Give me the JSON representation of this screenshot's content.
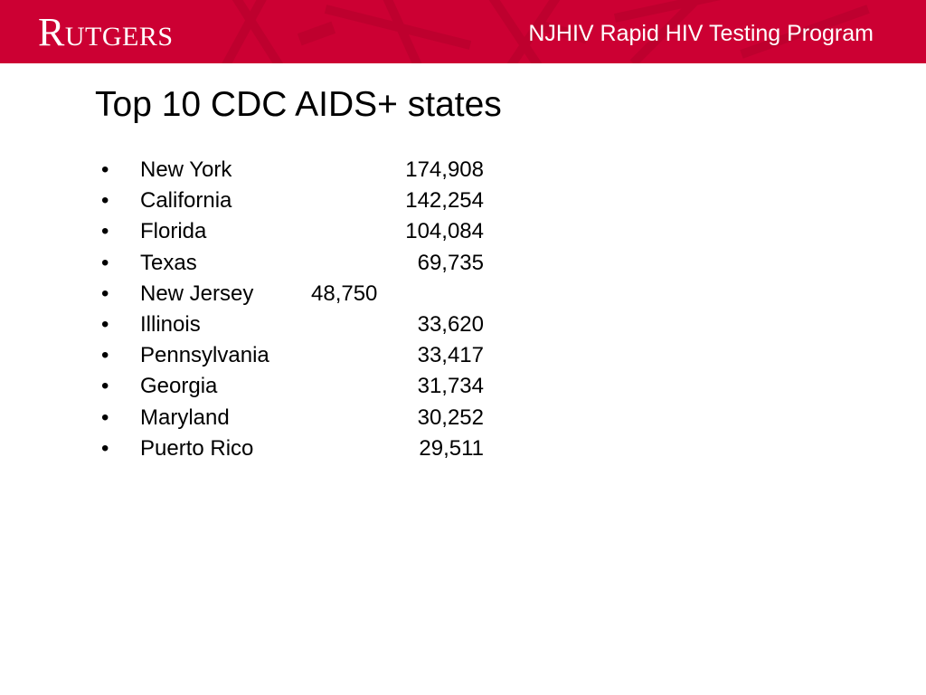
{
  "header": {
    "logo_initial": "R",
    "logo_rest": "UTGERS",
    "program_title": "NJHIV Rapid HIV Testing Program",
    "bar_color": "#cc0033"
  },
  "main": {
    "title": "Top 10 CDC AIDS+ states",
    "bullet_glyph": "•",
    "states": [
      {
        "name": "New York",
        "value": "174,908"
      },
      {
        "name": "California",
        "value": "142,254"
      },
      {
        "name": "Florida",
        "value": "104,084"
      },
      {
        "name": "Texas",
        "value": "69,735"
      },
      {
        "name": "New Jersey",
        "value": "48,750"
      },
      {
        "name": "Illinois",
        "value": "33,620"
      },
      {
        "name": "Pennsylvania",
        "value": "33,417"
      },
      {
        "name": "Georgia",
        "value": "31,734"
      },
      {
        "name": "Maryland",
        "value": "30,252"
      },
      {
        "name": "Puerto Rico",
        "value": "29,511"
      }
    ]
  }
}
